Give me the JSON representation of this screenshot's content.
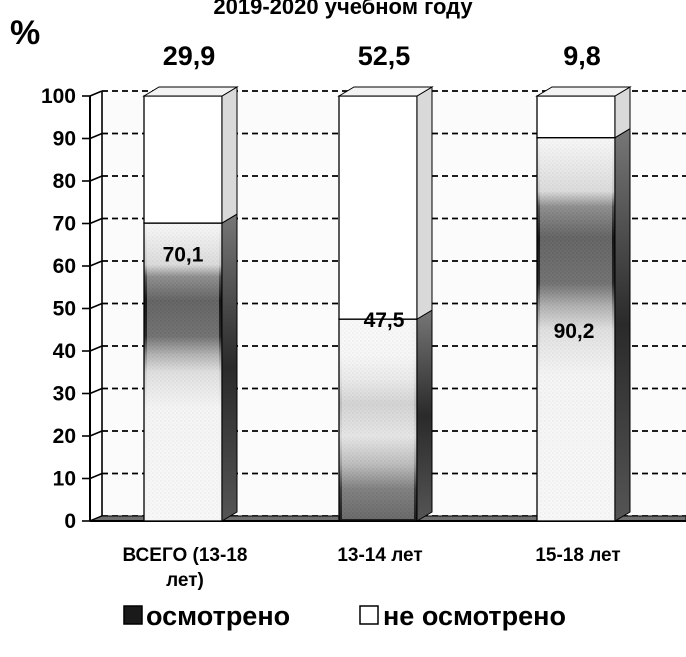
{
  "chart_data": {
    "type": "bar",
    "stacked": true,
    "title": "2019-2020 учебном году",
    "ylabel": "%",
    "ylim": [
      0,
      100
    ],
    "yticks": [
      "0",
      "10",
      "20",
      "30",
      "40",
      "50",
      "60",
      "70",
      "80",
      "90",
      "100"
    ],
    "grid": true,
    "legend_position": "bottom",
    "categories": [
      [
        "ВСЕГО (13-18",
        "лет)"
      ],
      [
        "13-14 лет"
      ],
      [
        "15-18 лет"
      ]
    ],
    "series": [
      {
        "name": "осмотрено",
        "values": [
          70.1,
          47.5,
          90.2
        ],
        "labels": [
          "70,1",
          "47,5",
          "90,2"
        ],
        "color": "#1a1a1a"
      },
      {
        "name": "не осмотрено",
        "values": [
          29.9,
          52.5,
          9.8
        ],
        "labels": [
          "29,9",
          "52,5",
          "9,8"
        ],
        "color": "#ffffff"
      }
    ]
  }
}
